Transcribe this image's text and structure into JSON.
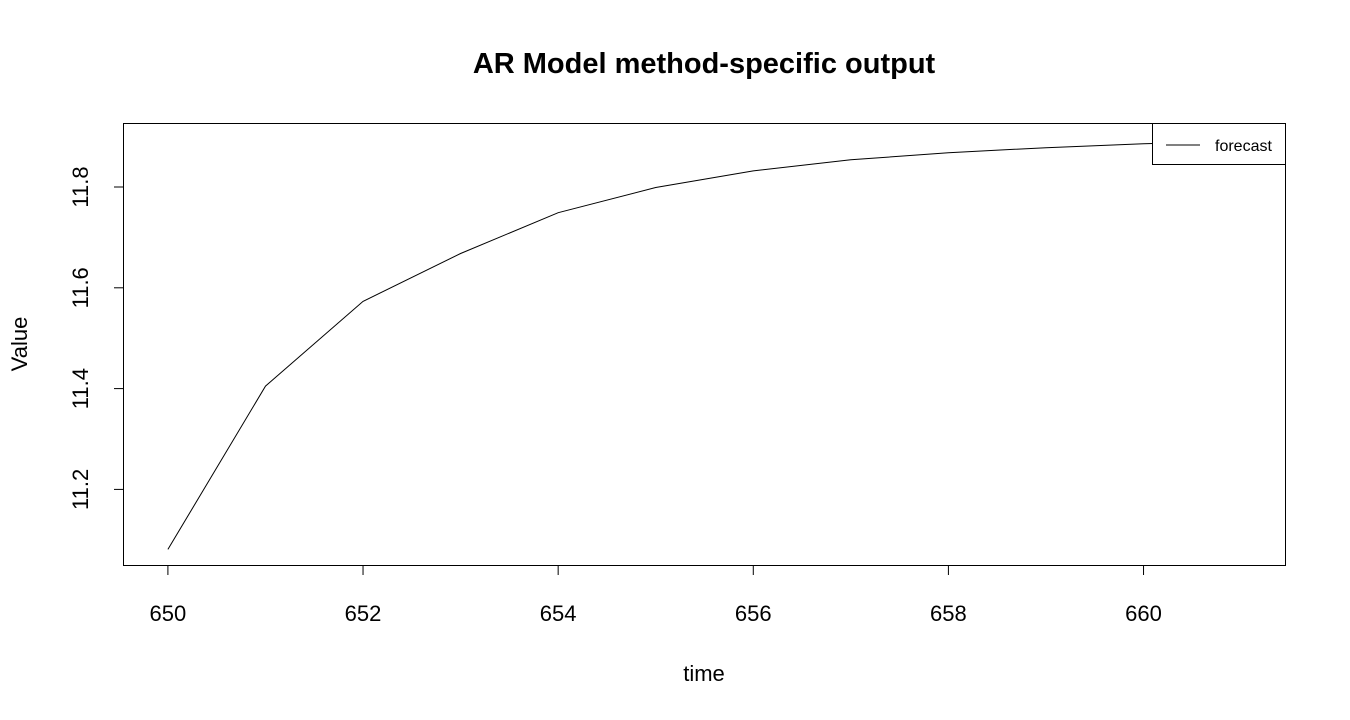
{
  "chart_data": {
    "type": "line",
    "title": "AR Model method-specific output",
    "xlabel": "time",
    "ylabel": "Value",
    "xlim": [
      649.55,
      661.45
    ],
    "ylim": [
      11.05,
      11.925
    ],
    "x_ticks": [
      650,
      652,
      654,
      656,
      658,
      660
    ],
    "x_tick_labels": [
      "650",
      "652",
      "654",
      "656",
      "658",
      "660"
    ],
    "y_ticks": [
      11.2,
      11.4,
      11.6,
      11.8
    ],
    "y_tick_labels": [
      "11.2",
      "11.4",
      "11.6",
      "11.8"
    ],
    "grid": false,
    "legend": {
      "placement": "top-right",
      "entries": [
        "forecast"
      ]
    },
    "series": [
      {
        "name": "forecast",
        "color": "#000000",
        "x": [
          650,
          651,
          652,
          653,
          654,
          655,
          656,
          657,
          658,
          659,
          660,
          661
        ],
        "y": [
          11.081,
          11.405,
          11.573,
          11.668,
          11.749,
          11.799,
          11.832,
          11.854,
          11.868,
          11.878,
          11.886,
          11.891
        ]
      }
    ]
  }
}
